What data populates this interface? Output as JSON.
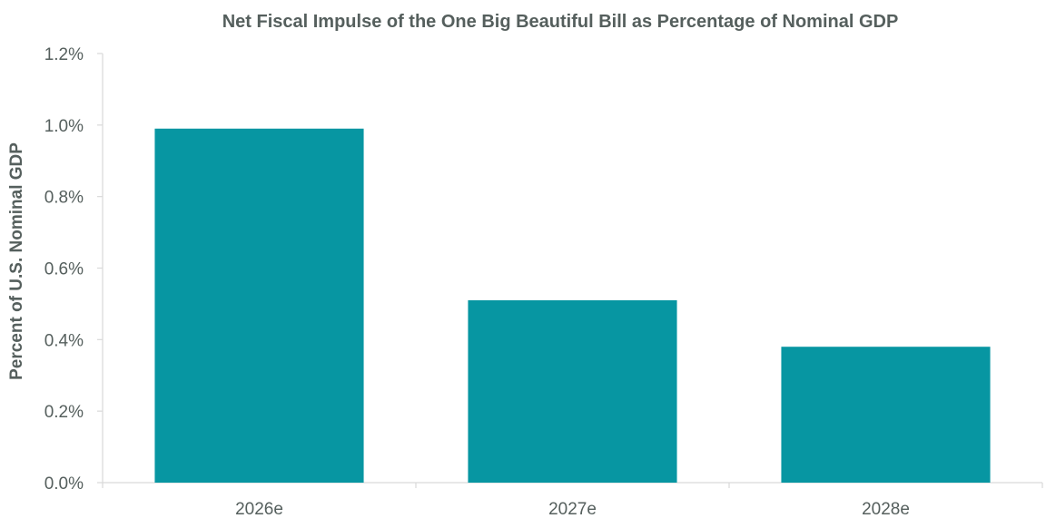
{
  "chart_data": {
    "type": "bar",
    "title": "Net Fiscal Impulse of the One Big Beautiful Bill as Percentage of Nominal GDP",
    "xlabel": "",
    "ylabel": "Percent of U.S. Nominal GDP",
    "categories": [
      "2026e",
      "2027e",
      "2028e"
    ],
    "values": [
      0.99,
      0.51,
      0.38
    ],
    "ylim": [
      0,
      1.2
    ],
    "yticks": [
      "0.0%",
      "0.2%",
      "0.4%",
      "0.6%",
      "0.8%",
      "1.0%",
      "1.2%"
    ],
    "grid": false,
    "legend": "none",
    "colors": {
      "bar": "#0796a2",
      "text": "#555f5d",
      "axis": "#d9d9d9"
    }
  }
}
